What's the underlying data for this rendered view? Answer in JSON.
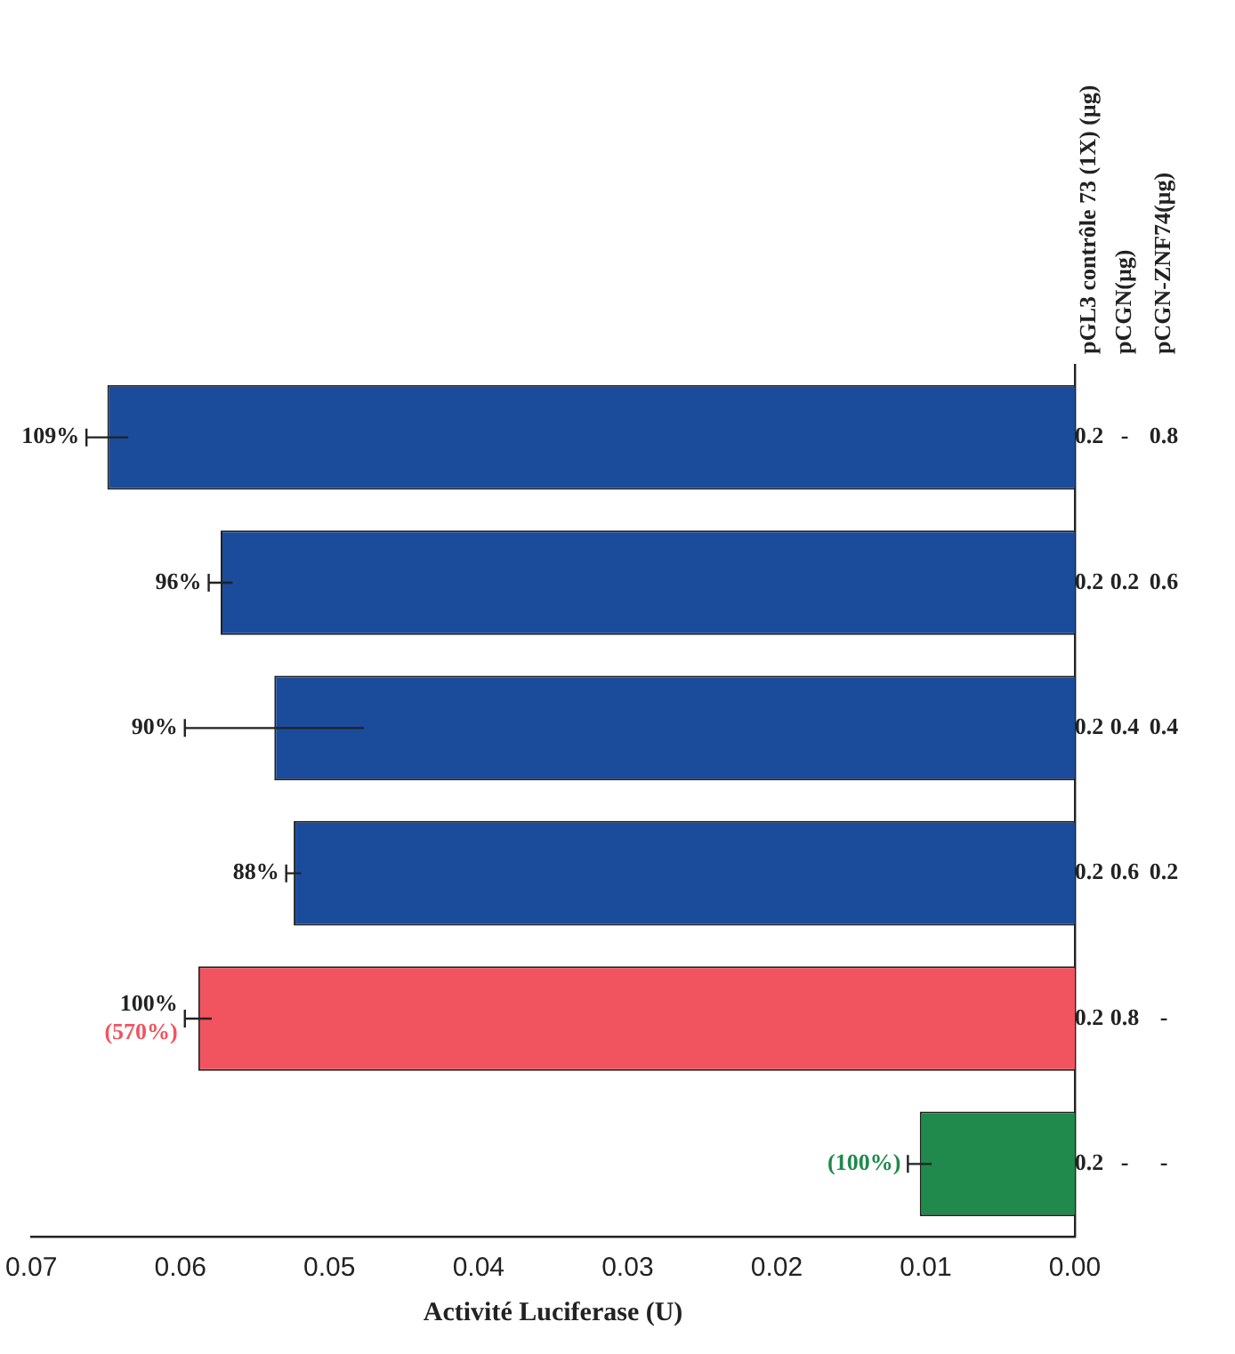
{
  "chart_data": {
    "type": "bar",
    "orientation": "horizontal",
    "categories": [
      "0.2\n-\n0.8",
      "0.2\n0.2\n0.6",
      "0.2\n0.4\n0.4",
      "0.2\n0.6\n0.2",
      "0.2\n0.8\n-",
      "0.2\n-\n-"
    ],
    "values": [
      0.0649,
      0.0573,
      0.0537,
      0.0524,
      0.0588,
      0.0104
    ],
    "errors": [
      0.0014,
      0.0008,
      0.006,
      0.0005,
      0.0009,
      0.0008
    ],
    "colors": [
      "#1b4c9c",
      "#1b4c9c",
      "#1b4c9c",
      "#1b4c9c",
      "#f2545f",
      "#1f8a4c"
    ],
    "xlabel": "Activité Luciferase (U)",
    "xlim": [
      0.07,
      0
    ],
    "xticks": [
      {
        "value": 0.07,
        "label": "0.07"
      },
      {
        "value": 0.06,
        "label": "0.06"
      },
      {
        "value": 0.05,
        "label": "0.05"
      },
      {
        "value": 0.04,
        "label": "0.04"
      },
      {
        "value": 0.03,
        "label": "0.03"
      },
      {
        "value": 0.02,
        "label": "0.02"
      },
      {
        "value": 0.01,
        "label": "0.01"
      },
      {
        "value": 0,
        "label": "0.00"
      }
    ],
    "annotations": [
      "pGL3 contrôle 73 (1X) (µg)",
      "pCGN(µg)",
      "pCGN-ZNF74(µg)",
      {
        "text": "109%",
        "x": 0.0663,
        "y": "0.2\n-\n0.8"
      },
      {
        "text": "96%",
        "x": 0.0581,
        "y": "0.2\n0.2\n0.6"
      },
      {
        "text": "90%",
        "x": 0.0597,
        "y": "0.2\n0.4\n0.4"
      },
      {
        "text": "88%",
        "x": 0.0529,
        "y": "0.2\n0.6\n0.2"
      },
      {
        "text": "100%",
        "x": 0.0597,
        "y": "0.2\n0.8\n-"
      },
      {
        "text": "(570%)",
        "x": 0.0597,
        "y": "0.2\n0.8\n-"
      },
      {
        "text": "(100%)",
        "x": 0.0112,
        "y": "0.2\n-\n-"
      }
    ],
    "grid": false,
    "legend": false
  }
}
